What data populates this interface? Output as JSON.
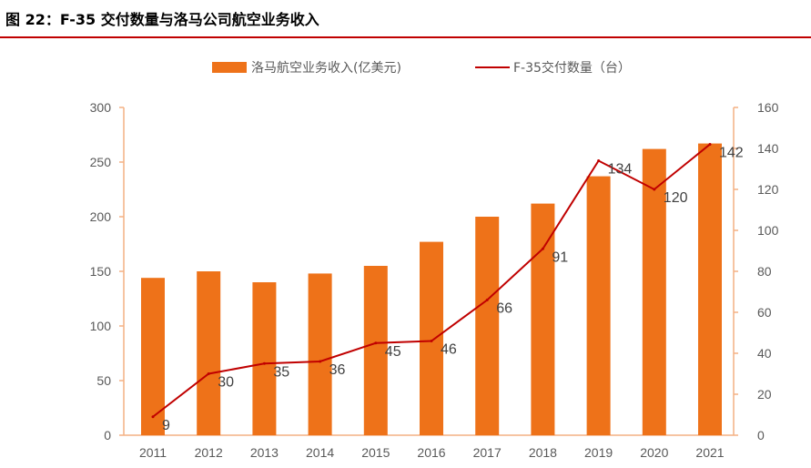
{
  "figure": {
    "title": "图 22：F-35 交付数量与洛马公司航空业务收入"
  },
  "colors": {
    "bar": "#EE7219",
    "line": "#C00000",
    "rule": "#C00000",
    "axis": "#F4B183"
  },
  "chart_data": {
    "type": "bar+line",
    "categories": [
      "2011",
      "2012",
      "2013",
      "2014",
      "2015",
      "2016",
      "2017",
      "2018",
      "2019",
      "2020",
      "2021"
    ],
    "series": [
      {
        "name": "洛马航空业务收入(亿美元)",
        "type": "bar",
        "axis": "left",
        "values": [
          144,
          150,
          140,
          148,
          155,
          177,
          200,
          212,
          237,
          262,
          267
        ]
      },
      {
        "name": "F-35交付数量（台）",
        "type": "line",
        "axis": "right",
        "values": [
          9,
          30,
          35,
          36,
          45,
          46,
          66,
          91,
          134,
          120,
          142
        ]
      }
    ],
    "y_left": {
      "min": 0,
      "max": 300,
      "ticks": [
        "0",
        "50",
        "100",
        "150",
        "200",
        "250",
        "300"
      ]
    },
    "y_right": {
      "min": 0,
      "max": 160,
      "ticks": [
        "0",
        "20",
        "40",
        "60",
        "80",
        "100",
        "120",
        "140",
        "160"
      ]
    },
    "legend_position": "top-center",
    "grid": false
  }
}
